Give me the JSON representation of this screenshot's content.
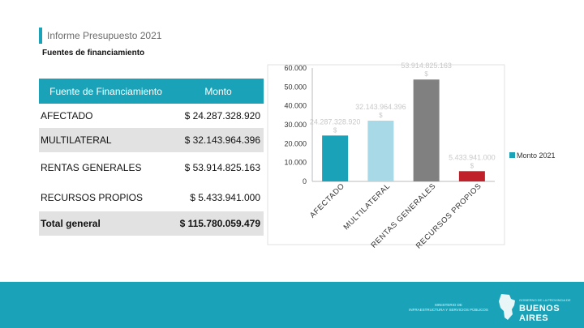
{
  "header": {
    "title": "Informe Presupuesto 2021"
  },
  "subtitle": "Fuentes de financiamiento",
  "table": {
    "col1": "Fuente de Financiamiento",
    "col2": "Monto",
    "rows": [
      {
        "label": "AFECTADO",
        "value": "$ 24.287.328.920"
      },
      {
        "label": "MULTILATERAL",
        "value": "$ 32.143.964.396"
      },
      {
        "label": "RENTAS GENERALES",
        "value": "$ 53.914.825.163"
      },
      {
        "label": "RECURSOS PROPIOS",
        "value": "$ 5.433.941.000"
      }
    ],
    "total": {
      "label": "Total general",
      "value": "$ 115.780.059.479"
    }
  },
  "chart_data": {
    "type": "bar",
    "categories": [
      "AFECTADO",
      "MULTILATERAL",
      "RENTAS GENERALES",
      "RECURSOS PROPIOS"
    ],
    "series": [
      {
        "name": "Monto 2021",
        "values": [
          24287.33,
          32143.96,
          53914.83,
          5433.94
        ]
      }
    ],
    "colors": [
      "#1aa3b8",
      "#a8d9e6",
      "#808080",
      "#c0202a"
    ],
    "data_labels": [
      "24.287.328.920 $",
      "32.143.964.396 $",
      "53.914.825.163 $",
      "5.433.941.000 $"
    ],
    "yticks": [
      "0",
      "10.000",
      "20.000",
      "30.000",
      "40.000",
      "50.000",
      "60.000"
    ],
    "ylim": [
      0,
      60000
    ],
    "grid": false,
    "legend": "right"
  },
  "footer": {
    "ministry_line1": "MINISTERIO DE",
    "ministry_line2": "INFRAESTRUCTURA Y SERVICIOS PÚBLICOS",
    "gov_text": "GOBIERNO DE LA PROVINCIA DE",
    "brand": "BUENOS AIRES"
  }
}
